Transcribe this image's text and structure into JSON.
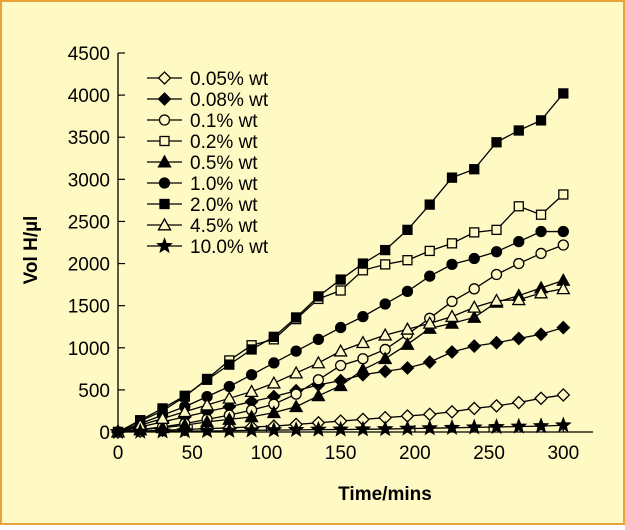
{
  "colors": {
    "background": "#fff9c4",
    "border": "#e8a33a",
    "line": "#000000"
  },
  "chart_data": {
    "type": "line",
    "xlabel": "Time/mins",
    "ylabel": "Vol H/µl",
    "xlim": [
      0,
      320
    ],
    "ylim": [
      0,
      4500
    ],
    "xticks": [
      0,
      50,
      100,
      150,
      200,
      250,
      300
    ],
    "yticks": [
      0,
      500,
      1000,
      1500,
      2000,
      2500,
      3000,
      3500,
      4000,
      4500
    ],
    "grid": false,
    "legend_position": "top-left",
    "x": [
      0,
      15,
      30,
      45,
      60,
      75,
      90,
      105,
      120,
      135,
      150,
      165,
      180,
      195,
      210,
      225,
      240,
      255,
      270,
      285,
      300
    ],
    "series": [
      {
        "name": "0.05% wt",
        "marker": "diamond-open",
        "values": [
          0,
          10,
          20,
          30,
          40,
          50,
          60,
          70,
          90,
          110,
          130,
          150,
          170,
          190,
          210,
          240,
          280,
          310,
          350,
          400,
          440
        ]
      },
      {
        "name": "0.08% wt",
        "marker": "diamond-filled",
        "values": [
          0,
          60,
          120,
          180,
          240,
          300,
          360,
          420,
          490,
          560,
          610,
          680,
          720,
          760,
          830,
          950,
          1020,
          1060,
          1110,
          1160,
          1240
        ]
      },
      {
        "name": "0.1% wt",
        "marker": "circle-open",
        "values": [
          0,
          30,
          60,
          100,
          150,
          200,
          260,
          330,
          450,
          620,
          790,
          870,
          980,
          1160,
          1350,
          1550,
          1700,
          1870,
          2000,
          2120,
          2220
        ]
      },
      {
        "name": "0.2% wt",
        "marker": "square-open",
        "values": [
          0,
          130,
          250,
          420,
          630,
          850,
          1030,
          1100,
          1340,
          1580,
          1680,
          1920,
          1990,
          2040,
          2150,
          2240,
          2370,
          2400,
          2680,
          2580,
          2820
        ]
      },
      {
        "name": "0.5% wt",
        "marker": "triangle-filled",
        "values": [
          0,
          25,
          50,
          80,
          120,
          150,
          180,
          230,
          300,
          430,
          550,
          740,
          870,
          1040,
          1230,
          1290,
          1360,
          1540,
          1620,
          1710,
          1800
        ]
      },
      {
        "name": "1.0% wt",
        "marker": "circle-filled",
        "values": [
          0,
          100,
          200,
          300,
          420,
          540,
          680,
          820,
          960,
          1100,
          1240,
          1370,
          1520,
          1670,
          1850,
          1990,
          2060,
          2140,
          2260,
          2380,
          2380
        ]
      },
      {
        "name": "2.0% wt",
        "marker": "square-filled",
        "values": [
          0,
          140,
          280,
          430,
          620,
          800,
          980,
          1130,
          1360,
          1610,
          1810,
          2000,
          2160,
          2400,
          2700,
          3020,
          3120,
          3440,
          3580,
          3700,
          4020
        ]
      },
      {
        "name": "4.5% wt",
        "marker": "triangle-open",
        "values": [
          0,
          80,
          160,
          240,
          320,
          400,
          480,
          580,
          700,
          820,
          960,
          1060,
          1150,
          1220,
          1290,
          1370,
          1480,
          1560,
          1570,
          1650,
          1700
        ]
      },
      {
        "name": "10.0% wt",
        "marker": "star-filled",
        "values": [
          0,
          5,
          8,
          10,
          12,
          15,
          20,
          22,
          25,
          28,
          30,
          32,
          35,
          40,
          45,
          50,
          55,
          60,
          65,
          70,
          80
        ]
      }
    ]
  }
}
